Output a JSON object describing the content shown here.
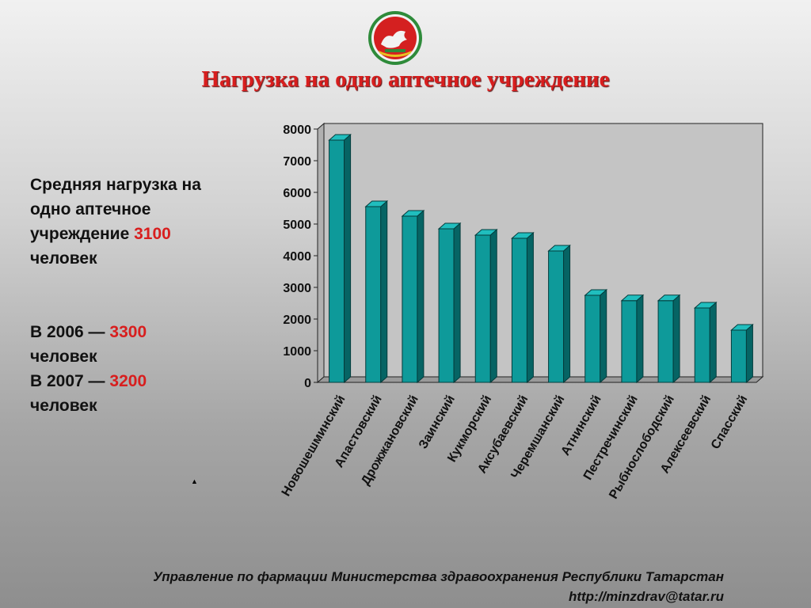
{
  "title": "Нагрузка на одно аптечное учреждение",
  "side": {
    "avg_text": "Средняя  нагрузка на одно аптечное учреждение",
    "avg_value": "3100",
    "avg_unit": "человек",
    "y2006_label": "В 2006 —",
    "y2006_value": "3300",
    "y2006_unit": "человек",
    "y2007_label": "В 2007 —",
    "y2007_value": "3200",
    "y2007_unit": "человек"
  },
  "colors": {
    "accent_red": "#d81e1e",
    "bar_front": "#0e9a9a",
    "bar_side": "#066464",
    "bar_top": "#20bebe",
    "plot_bg": "#c4c4c4"
  },
  "chart_data": {
    "type": "bar",
    "style": "3d",
    "categories": [
      "Новошешминский",
      "Апастовский",
      "Дрожжановский",
      "Заинский",
      "Кукморский",
      "Аксубаевский",
      "Черемшанский",
      "Атнинский",
      "Пестречинский",
      "Рыбнослободский",
      "Алексеевский",
      "Спасский"
    ],
    "values": [
      7650,
      5550,
      5250,
      4850,
      4650,
      4550,
      4150,
      2750,
      2580,
      2580,
      2350,
      1650
    ],
    "ylim": [
      0,
      8000
    ],
    "yticks": [
      "0",
      "1000",
      "2000",
      "3000",
      "4000",
      "5000",
      "6000",
      "7000",
      "8000"
    ],
    "grid": false,
    "legend": "none"
  },
  "marker_symbol": "▲",
  "footer": {
    "line1": "Управление по фармации Министерства здравоохранения Республики Татарстан",
    "line2": "http://minzdrav@tatar.ru"
  }
}
